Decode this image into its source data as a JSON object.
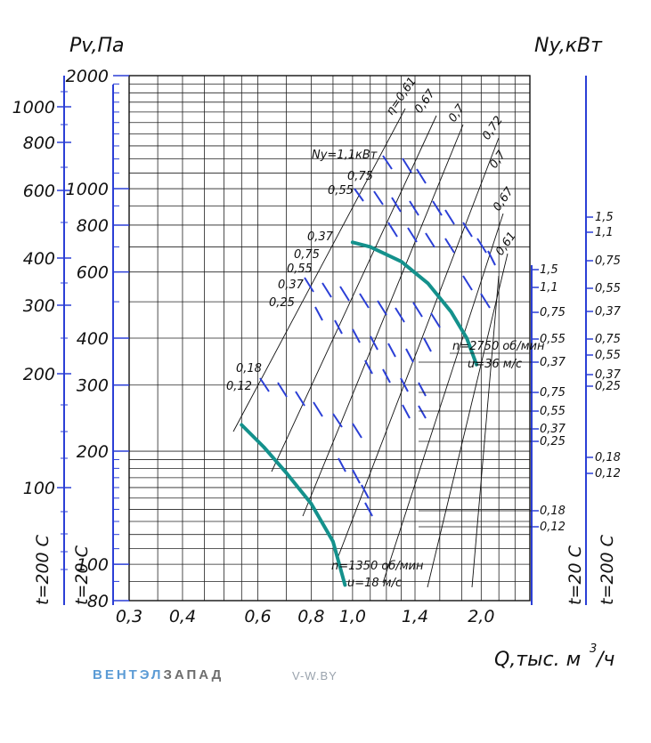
{
  "chart_data": {
    "type": "line",
    "title": "",
    "left_axis_title": "Pv,Па",
    "right_axis_title": "Ny,кВт",
    "x_axis_title": "Q,тыс. м",
    "x_axis_title_sup": "3",
    "x_axis_title_tail": "/ч",
    "x_axis": {
      "scale": "log",
      "min": 0.3,
      "max": 2.6,
      "tick_labels": [
        "0,3",
        "0,4",
        "0,6",
        "0,8",
        "1,0",
        "1,4",
        "2,0"
      ],
      "tick_values": [
        0.3,
        0.4,
        0.6,
        0.8,
        1.0,
        1.4,
        2.0
      ]
    },
    "y_axis": {
      "scale": "log",
      "min": 80,
      "max": 2000,
      "tick_labels": [
        "2000",
        "1000",
        "800",
        "600",
        "400",
        "300",
        "200",
        "100",
        "80"
      ],
      "tick_values": [
        2000,
        1000,
        800,
        600,
        400,
        300,
        200,
        100,
        80
      ]
    },
    "secondary_axis_left": {
      "label": "t=200 C",
      "tick_labels": [
        "1000",
        "800",
        "600",
        "400",
        "300",
        "200",
        "100"
      ]
    },
    "secondary_axis_left2": {
      "label": "t=20 C"
    },
    "efficiency_labels": [
      "η=0,61",
      "0,67",
      "0,7",
      "0,72",
      "0,7",
      "0,67",
      "0,61"
    ],
    "series": [
      {
        "name": "n=2750 об/мин",
        "sub": "u=36 м/с",
        "points": [
          [
            1.0,
            720
          ],
          [
            1.1,
            700
          ],
          [
            1.3,
            640
          ],
          [
            1.5,
            560
          ],
          [
            1.7,
            470
          ],
          [
            1.85,
            400
          ],
          [
            1.95,
            340
          ]
        ]
      },
      {
        "name": "n=1350 об/мин",
        "sub": "u=18 м/с",
        "points": [
          [
            0.55,
            235
          ],
          [
            0.62,
            205
          ],
          [
            0.7,
            175
          ],
          [
            0.8,
            145
          ],
          [
            0.9,
            115
          ],
          [
            0.96,
            88
          ]
        ]
      }
    ],
    "power_labels_upper": [
      "Ny=1,1кВт",
      "0,75",
      "0,55",
      "0,37",
      "0,75",
      "0,55",
      "0,37",
      "0,25"
    ],
    "power_labels_lower": [
      "0,18",
      "0,12"
    ],
    "right_axis_inner": [
      "1,5",
      "1,1",
      "0,75",
      "0,55",
      "0,37",
      "0,75",
      "0,55",
      "0,37",
      "0,25",
      "0,18",
      "0,12"
    ],
    "right_axis_outer": [
      "1,5",
      "1,1",
      "0,75",
      "0,55",
      "0,37",
      "0,75",
      "0,55",
      "0,37",
      "0,25",
      "0,18",
      "0,12"
    ],
    "right_axis_labels": {
      "inner": "t=20 C",
      "outer": "t=200 C"
    },
    "grid": true
  },
  "brand": {
    "part1": "ВЕНТЭЛ",
    "part2": "ЗАПАД",
    "site": "V-W.BY"
  }
}
